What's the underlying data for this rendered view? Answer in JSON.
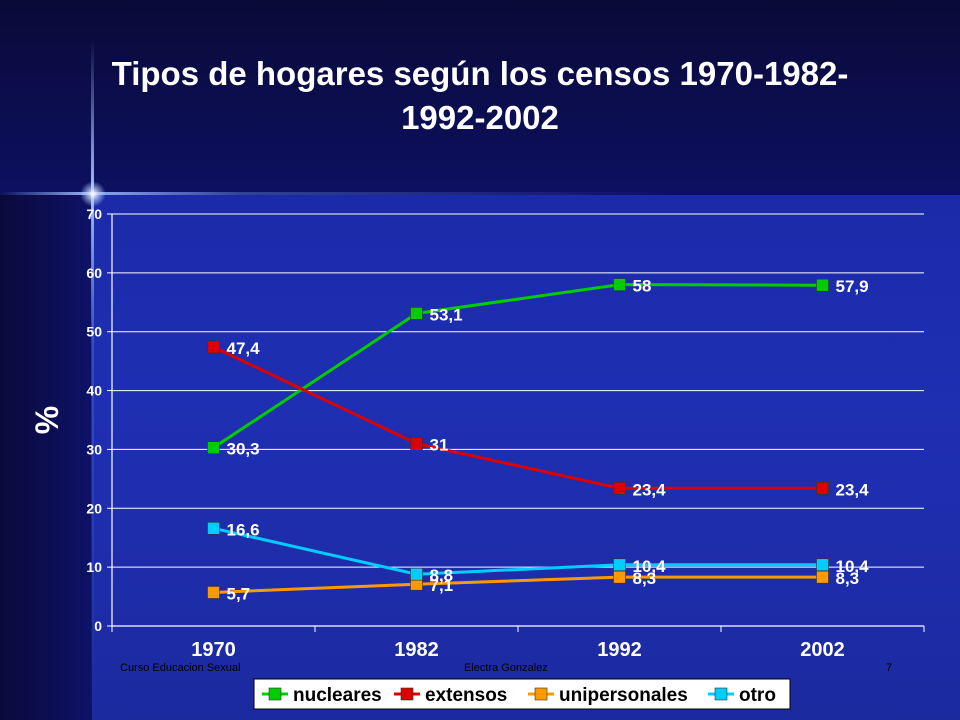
{
  "slide": {
    "title_line1": "Tipos de hogares según los censos 1970-1982-",
    "title_line2": "1992-2002",
    "footer_left": "Curso Educacion Sexual",
    "footer_center": "Electra Gonzalez",
    "footer_right": "7"
  },
  "chart_data": {
    "type": "line",
    "title": "",
    "xlabel": "",
    "ylabel": "%",
    "categories": [
      "1970",
      "1982",
      "1992",
      "2002"
    ],
    "ylim": [
      0,
      70
    ],
    "yticks": [
      0,
      10,
      20,
      30,
      40,
      50,
      60,
      70
    ],
    "grid": true,
    "legend_position": "bottom",
    "series": [
      {
        "name": "nucleares",
        "color": "#00cc00",
        "values": [
          30.3,
          53.1,
          58,
          57.9
        ],
        "labels": [
          "30,3",
          "53,1",
          "58",
          "57,9"
        ]
      },
      {
        "name": "extensos",
        "color": "#dd0000",
        "values": [
          47.4,
          31,
          23.4,
          23.4
        ],
        "labels": [
          "47,4",
          "31",
          "23,4",
          "23,4"
        ]
      },
      {
        "name": "unipersonales",
        "color": "#ff9900",
        "values": [
          5.7,
          7.1,
          8.3,
          8.3
        ],
        "labels": [
          "5,7",
          "7,1",
          "8,3",
          "8,3"
        ]
      },
      {
        "name": "otro",
        "color": "#00ccff",
        "values": [
          16.6,
          8.8,
          10.4,
          10.4
        ],
        "labels": [
          "16,6",
          "8,8",
          "10,4",
          "10,4"
        ]
      }
    ]
  }
}
